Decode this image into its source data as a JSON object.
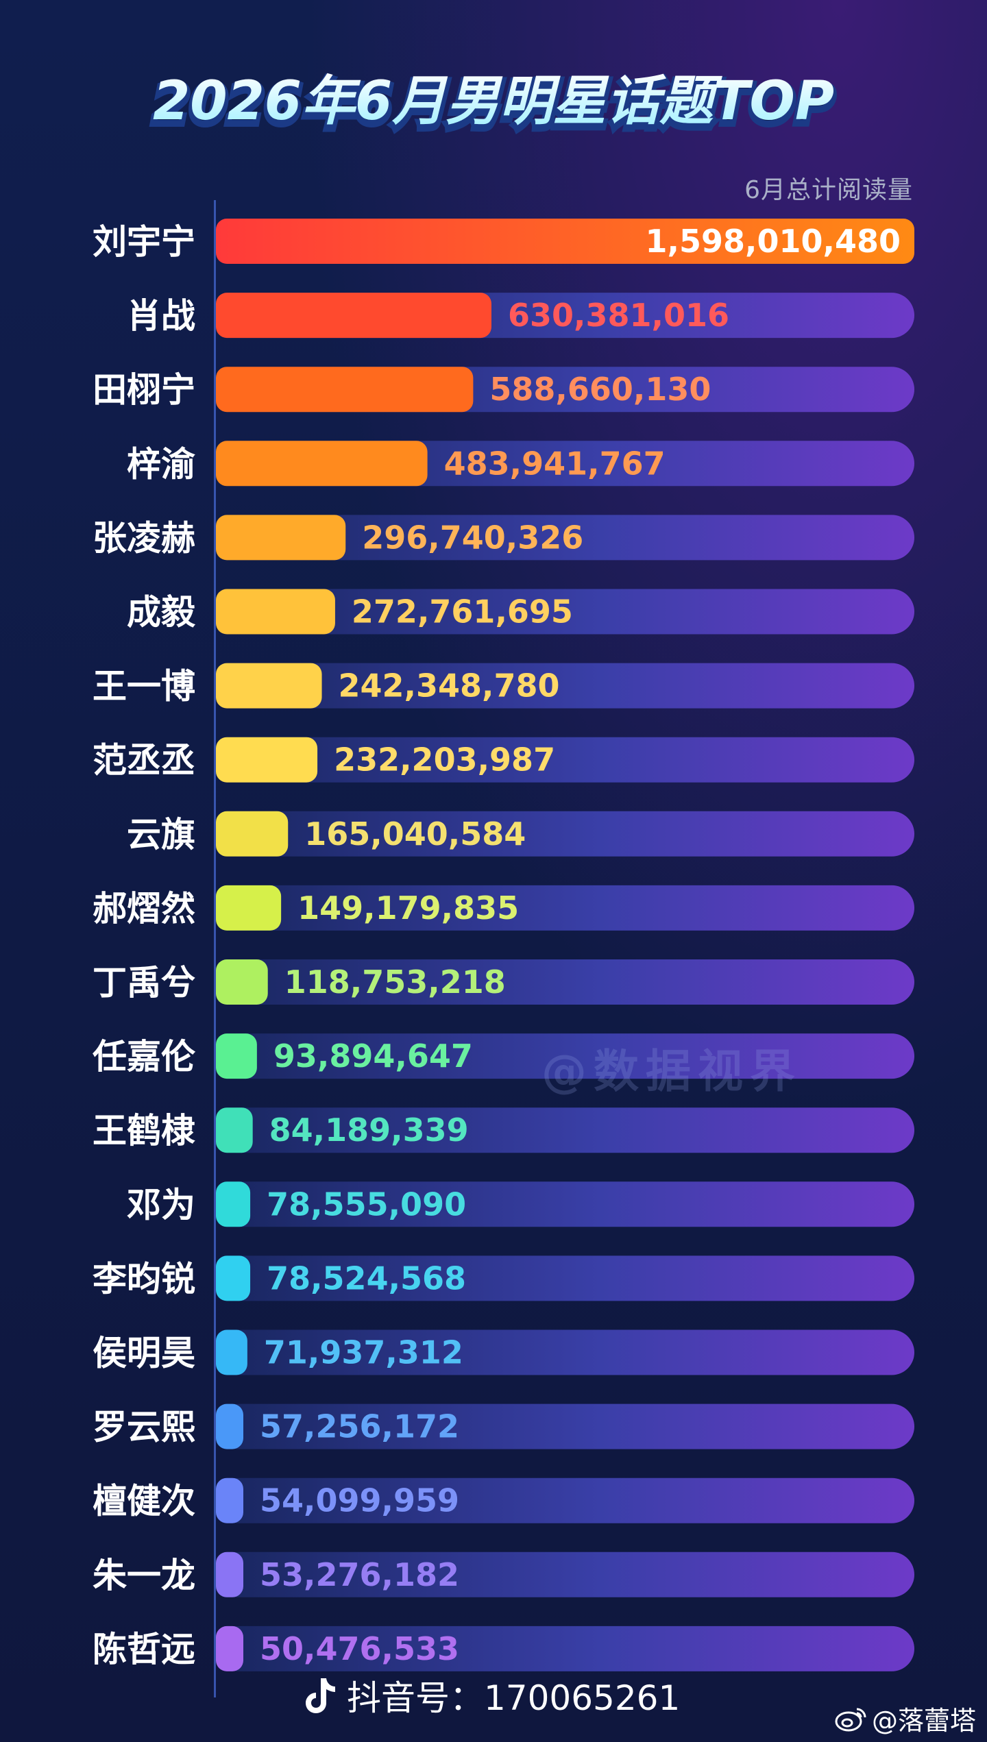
{
  "chart_data": {
    "type": "bar",
    "orientation": "horizontal",
    "title": "2026年6月男明星话题TOP",
    "subtitle": "6月总计阅读量",
    "categories": [
      "刘宇宁",
      "肖战",
      "田栩宁",
      "梓渝",
      "张凌赫",
      "成毅",
      "王一博",
      "范丞丞",
      "云旗",
      "郝熠然",
      "丁禹兮",
      "任嘉伦",
      "王鹤棣",
      "邓为",
      "李昀锐",
      "侯明昊",
      "罗云熙",
      "檀健次",
      "朱一龙",
      "陈哲远"
    ],
    "values": [
      1598010480,
      630381016,
      588660130,
      483941767,
      296740326,
      272761695,
      242348780,
      232203987,
      165040584,
      149179835,
      118753218,
      93894647,
      84189339,
      78555090,
      78524568,
      71937312,
      57256172,
      54099959,
      53276182,
      50476533
    ],
    "value_labels": [
      "1,598,010,480",
      "630,381,016",
      "588,660,130",
      "483,941,767",
      "296,740,326",
      "272,761,695",
      "242,348,780",
      "232,203,987",
      "165,040,584",
      "149,179,835",
      "118,753,218",
      "93,894,647",
      "84,189,339",
      "78,555,090",
      "78,524,568",
      "71,937,312",
      "57,256,172",
      "54,099,959",
      "53,276,182",
      "50,476,533"
    ],
    "bar_colors": [
      "#ff3a3a",
      "#ff4a2e",
      "#ff6a1e",
      "#ff8a1e",
      "#ffaa2a",
      "#ffc23a",
      "#ffd24a",
      "#ffdc50",
      "#f2e048",
      "#d6f04a",
      "#aef060",
      "#5af092",
      "#40e0b8",
      "#30dada",
      "#30d0f0",
      "#36b8f6",
      "#4a98f8",
      "#6a84f8",
      "#8a74f4",
      "#a86af0"
    ],
    "label_colors": [
      "#ffffff",
      "#ff5a5a",
      "#ff8e5e",
      "#ff9a52",
      "#ffb458",
      "#ffd060",
      "#ffd866",
      "#ffdc6a",
      "#f4e070",
      "#dcf070",
      "#b4f07a",
      "#6af0a0",
      "#54e6c0",
      "#48dce0",
      "#48d4f0",
      "#52c0f6",
      "#62a4f8",
      "#7c92f8",
      "#967ef4",
      "#b070f0"
    ],
    "xlim": [
      0,
      1598010480
    ],
    "grid": false,
    "legend": "none"
  },
  "watermark": "@数据视界",
  "footer": {
    "douyin_label": "抖音号：170065261",
    "weibo_handle": "@落蕾塔"
  }
}
